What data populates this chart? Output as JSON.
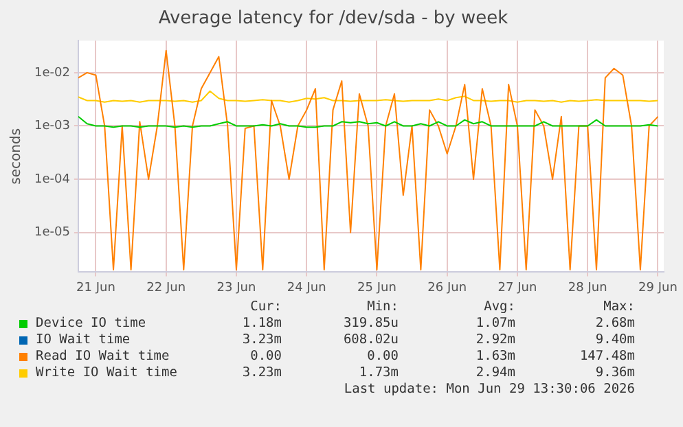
{
  "chart_data": {
    "type": "line",
    "title": "Average latency for /dev/sda - by week",
    "ylabel": "seconds",
    "log": "y",
    "grid": true,
    "legend": "bottom",
    "marker": "none",
    "line_style": "solid",
    "x": [
      "2026-06-20T18:00",
      "2026-06-20T21:00",
      "2026-06-21T00:00",
      "2026-06-21T03:00",
      "2026-06-21T06:00",
      "2026-06-21T09:00",
      "2026-06-21T12:00",
      "2026-06-21T15:00",
      "2026-06-21T18:00",
      "2026-06-21T21:00",
      "2026-06-22T00:00",
      "2026-06-22T03:00",
      "2026-06-22T06:00",
      "2026-06-22T09:00",
      "2026-06-22T12:00",
      "2026-06-22T15:00",
      "2026-06-22T18:00",
      "2026-06-22T21:00",
      "2026-06-23T00:00",
      "2026-06-23T03:00",
      "2026-06-23T06:00",
      "2026-06-23T09:00",
      "2026-06-23T12:00",
      "2026-06-23T15:00",
      "2026-06-23T18:00",
      "2026-06-23T21:00",
      "2026-06-24T00:00",
      "2026-06-24T03:00",
      "2026-06-24T06:00",
      "2026-06-24T09:00",
      "2026-06-24T12:00",
      "2026-06-24T15:00",
      "2026-06-24T18:00",
      "2026-06-24T21:00",
      "2026-06-25T00:00",
      "2026-06-25T03:00",
      "2026-06-25T06:00",
      "2026-06-25T09:00",
      "2026-06-25T12:00",
      "2026-06-25T15:00",
      "2026-06-25T18:00",
      "2026-06-25T21:00",
      "2026-06-26T00:00",
      "2026-06-26T03:00",
      "2026-06-26T06:00",
      "2026-06-26T09:00",
      "2026-06-26T12:00",
      "2026-06-26T15:00",
      "2026-06-26T18:00",
      "2026-06-26T21:00",
      "2026-06-27T00:00",
      "2026-06-27T03:00",
      "2026-06-27T06:00",
      "2026-06-27T09:00",
      "2026-06-27T12:00",
      "2026-06-27T15:00",
      "2026-06-27T18:00",
      "2026-06-27T21:00",
      "2026-06-28T00:00",
      "2026-06-28T03:00",
      "2026-06-28T06:00",
      "2026-06-28T09:00",
      "2026-06-28T12:00",
      "2026-06-28T15:00",
      "2026-06-28T18:00",
      "2026-06-28T21:00",
      "2026-06-29T00:00"
    ],
    "xlim": [
      "2026-06-20T18:00",
      "2026-06-29T02:00"
    ],
    "xticks": [
      {
        "value": "2026-06-21T00:00",
        "label": "21 Jun"
      },
      {
        "value": "2026-06-22T00:00",
        "label": "22 Jun"
      },
      {
        "value": "2026-06-23T00:00",
        "label": "23 Jun"
      },
      {
        "value": "2026-06-24T00:00",
        "label": "24 Jun"
      },
      {
        "value": "2026-06-25T00:00",
        "label": "25 Jun"
      },
      {
        "value": "2026-06-26T00:00",
        "label": "26 Jun"
      },
      {
        "value": "2026-06-27T00:00",
        "label": "27 Jun"
      },
      {
        "value": "2026-06-28T00:00",
        "label": "28 Jun"
      },
      {
        "value": "2026-06-29T00:00",
        "label": "29 Jun"
      }
    ],
    "ylim": [
      1.8e-06,
      0.04
    ],
    "yticks": [
      {
        "value": 1e-05,
        "label": "1e-05"
      },
      {
        "value": 0.0001,
        "label": "1e-04"
      },
      {
        "value": 0.001,
        "label": "1e-03"
      },
      {
        "value": 0.01,
        "label": "1e-02"
      }
    ],
    "series": [
      {
        "name": "Device IO time",
        "color": "#00cc00",
        "values": [
          0.0015,
          0.0011,
          0.001,
          0.001,
          0.00095,
          0.001,
          0.001,
          0.00095,
          0.001,
          0.001,
          0.001,
          0.00095,
          0.001,
          0.00095,
          0.001,
          0.001,
          0.0011,
          0.0012,
          0.001,
          0.001,
          0.001,
          0.00105,
          0.001,
          0.0011,
          0.001,
          0.001,
          0.00095,
          0.00095,
          0.001,
          0.001,
          0.0012,
          0.00115,
          0.0012,
          0.0011,
          0.00115,
          0.001,
          0.0012,
          0.001,
          0.001,
          0.0011,
          0.001,
          0.0012,
          0.001,
          0.001,
          0.0013,
          0.0011,
          0.0012,
          0.001,
          0.001,
          0.001,
          0.001,
          0.001,
          0.001,
          0.0012,
          0.001,
          0.001,
          0.001,
          0.001,
          0.001,
          0.0013,
          0.001,
          0.001,
          0.001,
          0.001,
          0.001,
          0.00105,
          0.001
        ]
      },
      {
        "name": "IO Wait time",
        "color": "#0066b3",
        "values": [
          null,
          null,
          null,
          null,
          null,
          null,
          null,
          null,
          null,
          null,
          null,
          null,
          null,
          null,
          null,
          null,
          null,
          null,
          null,
          null,
          null,
          null,
          null,
          null,
          null,
          null,
          null,
          null,
          null,
          null,
          null,
          null,
          null,
          null,
          null,
          null,
          null,
          null,
          null,
          null,
          null,
          null,
          null,
          null,
          null,
          null,
          null,
          null,
          null,
          null,
          null,
          null,
          null,
          null,
          null,
          null,
          null,
          null,
          null,
          null,
          null,
          null,
          null,
          null,
          null,
          null,
          null
        ]
      },
      {
        "name": "Read IO Wait time",
        "color": "#ff8000",
        "values": [
          0.008,
          0.01,
          0.009,
          0.001,
          2e-06,
          0.001,
          2e-06,
          0.0012,
          0.0001,
          0.001,
          0.026,
          0.001,
          2e-06,
          0.001,
          0.005,
          0.01,
          0.02,
          0.001,
          2e-06,
          0.0009,
          0.001,
          2e-06,
          0.003,
          0.001,
          0.0001,
          0.001,
          0.002,
          0.005,
          2e-06,
          0.002,
          0.007,
          1e-05,
          0.004,
          0.001,
          2e-06,
          0.001,
          0.004,
          5e-05,
          0.001,
          2e-06,
          0.002,
          0.001,
          0.0003,
          0.001,
          0.006,
          0.0001,
          0.005,
          0.001,
          2e-06,
          0.006,
          0.001,
          2e-06,
          0.002,
          0.001,
          0.0001,
          0.0015,
          2e-06,
          0.001,
          0.001,
          2e-06,
          0.008,
          0.012,
          0.009,
          0.001,
          2e-06,
          0.001,
          0.0015
        ]
      },
      {
        "name": "Write IO Wait time",
        "color": "#ffcc00",
        "values": [
          0.0035,
          0.003,
          0.003,
          0.0028,
          0.003,
          0.0029,
          0.003,
          0.0028,
          0.003,
          0.003,
          0.003,
          0.0029,
          0.003,
          0.0028,
          0.003,
          0.0045,
          0.0033,
          0.003,
          0.003,
          0.0029,
          0.003,
          0.0031,
          0.003,
          0.003,
          0.0028,
          0.003,
          0.0033,
          0.0032,
          0.0034,
          0.003,
          0.003,
          0.0029,
          0.003,
          0.003,
          0.003,
          0.0031,
          0.003,
          0.0029,
          0.003,
          0.003,
          0.003,
          0.0032,
          0.003,
          0.0034,
          0.0036,
          0.003,
          0.003,
          0.0029,
          0.003,
          0.003,
          0.0028,
          0.003,
          0.003,
          0.0029,
          0.003,
          0.0028,
          0.003,
          0.0029,
          0.003,
          0.0031,
          0.003,
          0.003,
          0.003,
          0.003,
          0.003,
          0.0029,
          0.003
        ]
      }
    ],
    "annotations": [
      "Cur:",
      "Min:",
      "Avg:",
      "Max:",
      "1.18m",
      "319.85u",
      "1.07m",
      "2.68m",
      "3.23m",
      "608.02u",
      "2.92m",
      "9.40m",
      "0.00",
      "0.00",
      "1.63m",
      "147.48m",
      "3.23m",
      "1.73m",
      "2.94m",
      "9.36m",
      "Last update: Mon Jun 29 13:30:06 2026"
    ]
  }
}
